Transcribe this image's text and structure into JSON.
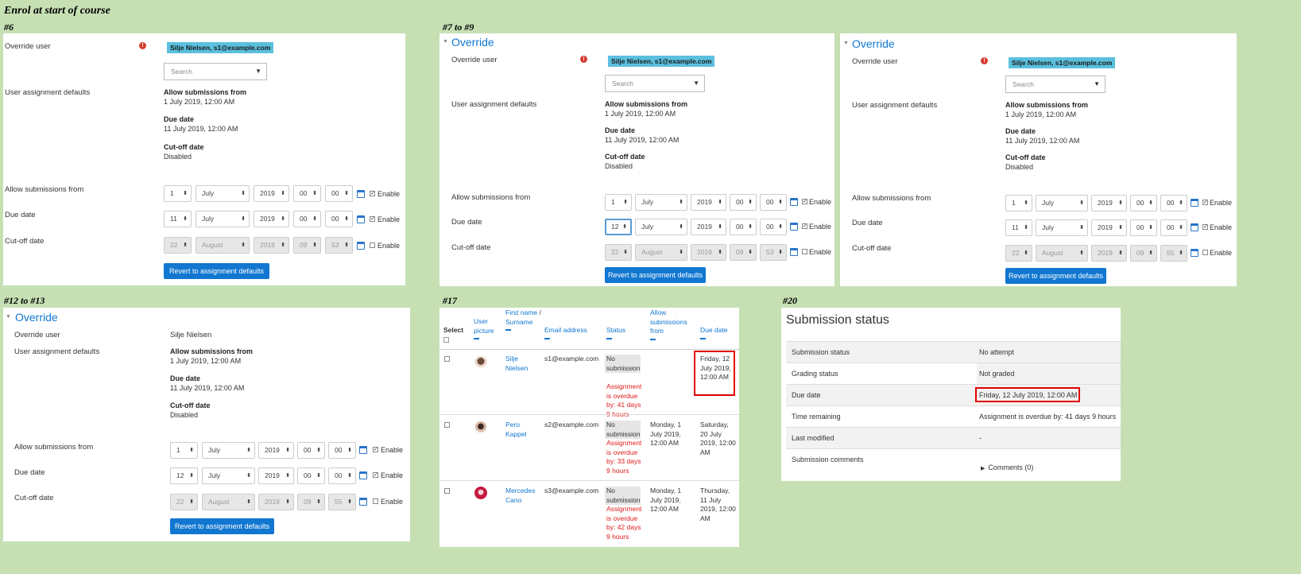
{
  "sheet": {
    "title": "Enrol at start of course",
    "s6": "#6",
    "s7": "#7 to #9",
    "s12": "#12 to #13",
    "s17": "#17",
    "s20": "#20"
  },
  "form": {
    "override_heading": "Override",
    "override_user_label": "Override user",
    "user_badge": "Silje Nielsen, s1@example.com",
    "user_plain": "Silje Nielsen",
    "search_placeholder": "Search",
    "search_arrow": "▼",
    "defaults_label": "User assignment defaults",
    "def_allow_title": "Allow submissions from",
    "def_allow_value": "1 July 2019, 12:00 AM",
    "def_due_title": "Due date",
    "def_due_value": "11 July 2019, 12:00 AM",
    "def_cutoff_title": "Cut-off date",
    "def_cutoff_value": "Disabled",
    "allow_label": "Allow submissions from",
    "due_label": "Due date",
    "cutoff_label": "Cut-off date",
    "enable": "Enable",
    "revert_button": "Revert to assignment defaults",
    "error_mark": "!",
    "caret": "⬍",
    "check_mark": "✓",
    "allow_row": {
      "day": "1",
      "month": "July",
      "year": "2019",
      "hour": "00",
      "minute": "00"
    },
    "due_row_a": {
      "day": "11",
      "month": "July",
      "year": "2019",
      "hour": "00",
      "minute": "00"
    },
    "due_row_b": {
      "day": "12",
      "month": "July",
      "year": "2019",
      "hour": "00",
      "minute": "00"
    },
    "cutoff_row_a": {
      "day": "22",
      "month": "August",
      "year": "2019",
      "hour": "09",
      "minute": "53"
    },
    "cutoff_row_b": {
      "day": "22",
      "month": "August",
      "year": "2019",
      "hour": "09",
      "minute": "55"
    }
  },
  "grading": {
    "headers": {
      "select": "Select",
      "picture": "User picture",
      "name_first": "First name",
      "name_sep": " / ",
      "name_last": "Surname",
      "email": "Email address",
      "status": "Status",
      "allow": "Allow submissions from",
      "due": "Due date"
    },
    "rows": [
      {
        "first": "Silje",
        "last": "Nielsen",
        "email": "s1@example.com",
        "status": "No submission",
        "overdue": "Assignment is overdue by: 41 days 9 hours",
        "allow": "",
        "due": "Friday, 12 July 2019, 12:00 AM"
      },
      {
        "first": "Pero",
        "last": "Kappel",
        "email": "s2@example.com",
        "status": "No submission",
        "overdue": "Assignment is overdue by: 33 days 9 hours",
        "allow": "Monday, 1 July 2019, 12:00 AM",
        "due": "Saturday, 20 July 2019, 12:00 AM"
      },
      {
        "first": "Mercedes",
        "last": "Cano",
        "email": "s3@example.com",
        "status": "No submission",
        "overdue": "Assignment is overdue by: 42 days 9 hours",
        "allow": "Monday, 1 July 2019, 12:00 AM",
        "due": "Thursday, 11 July 2019, 12:00 AM"
      }
    ]
  },
  "submission": {
    "title": "Submission status",
    "rows": [
      {
        "key": "Submission status",
        "value": "No attempt"
      },
      {
        "key": "Grading status",
        "value": "Not graded"
      },
      {
        "key": "Due date",
        "value": "Friday, 12 July 2019, 12:00 AM"
      },
      {
        "key": "Time remaining",
        "value": "Assignment is overdue by: 41 days 9 hours"
      },
      {
        "key": "Last modified",
        "value": "-"
      },
      {
        "key": "Submission comments",
        "value": ""
      }
    ],
    "comments_link": "Comments (0)",
    "comments_arrow": "▶"
  },
  "colors": {
    "background": "#c6e0b4",
    "accent": "#1177d1",
    "badge": "#5bc0de",
    "error": "#e01b1b"
  }
}
